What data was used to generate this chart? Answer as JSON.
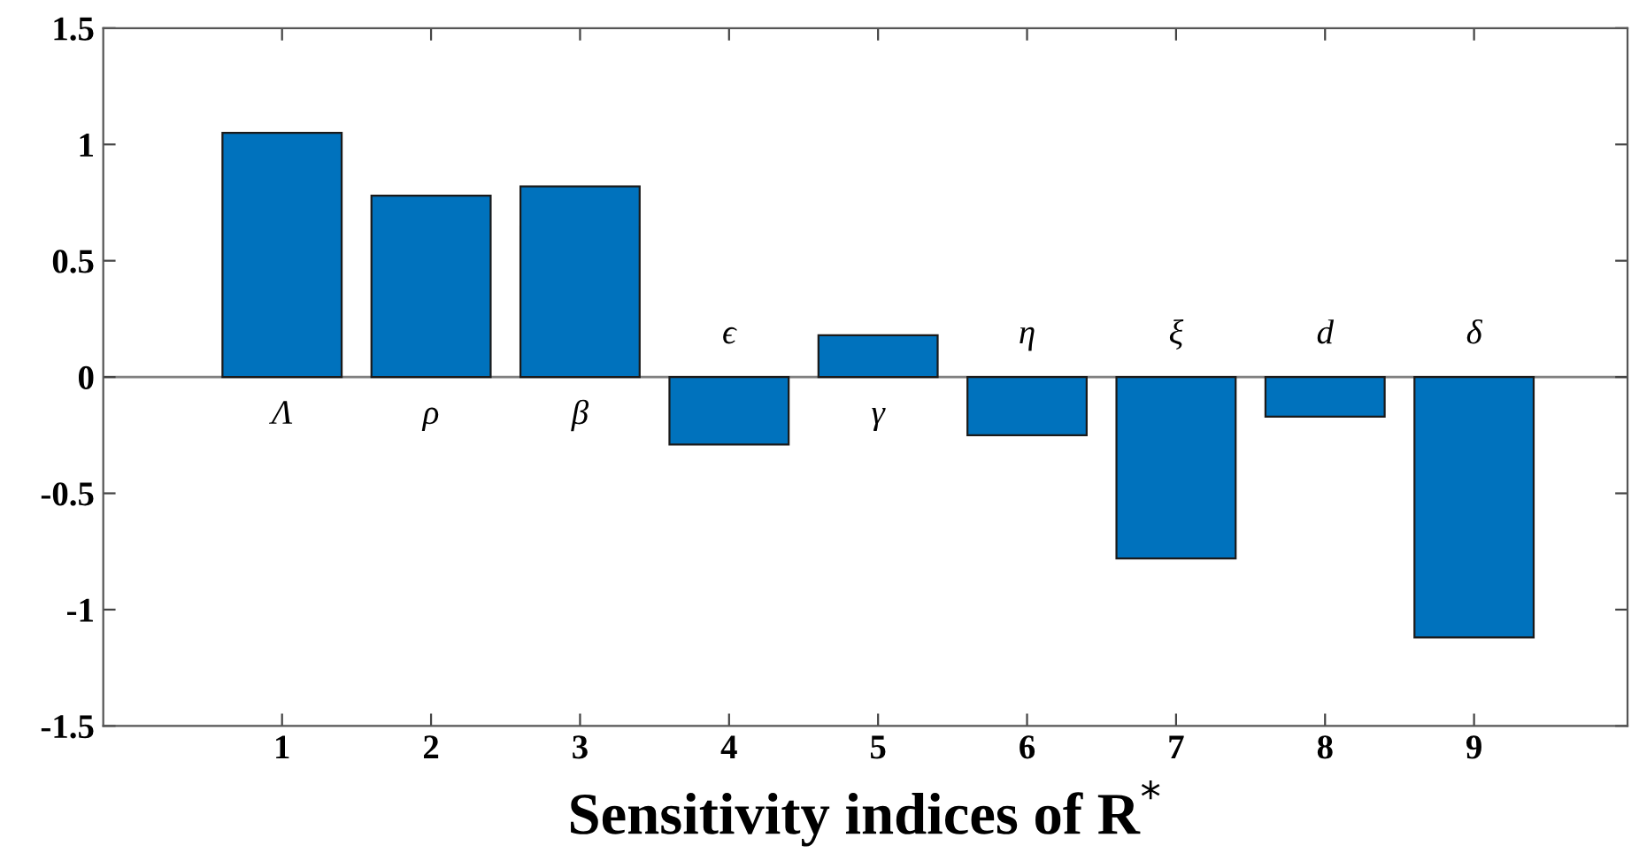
{
  "chart_data": {
    "type": "bar",
    "xlabel": "Sensitivity indices of R$^{*}$",
    "categories": [
      "1",
      "2",
      "3",
      "4",
      "5",
      "6",
      "7",
      "8",
      "9"
    ],
    "values": [
      1.05,
      0.78,
      0.82,
      -0.29,
      0.18,
      -0.25,
      -0.78,
      -0.17,
      -1.12
    ],
    "color": "#0072bd",
    "ylim": [
      -1.5,
      1.5
    ],
    "yticks": [
      -1.5,
      -1,
      -0.5,
      0,
      0.5,
      1,
      1.5
    ],
    "ref_lines": [
      {
        "axis": "y",
        "value": 0,
        "color": "#808080"
      }
    ],
    "annotations": [
      "Λ",
      "ρ",
      "β",
      "ϵ",
      "γ",
      "η",
      "ξ",
      "d",
      "δ"
    ]
  }
}
